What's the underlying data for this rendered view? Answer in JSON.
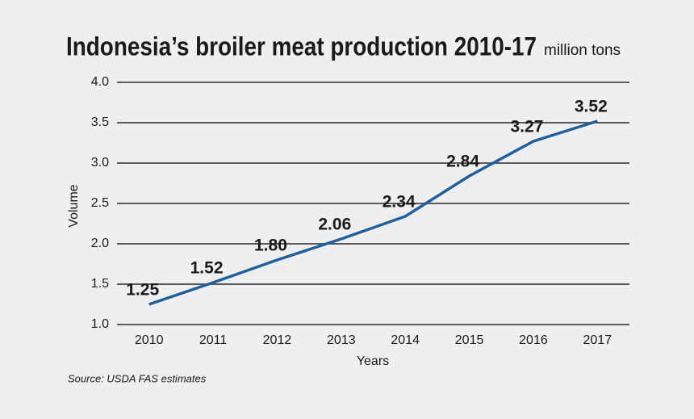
{
  "chart_data": {
    "type": "line",
    "title": "Indonesia’s broiler meat production 2010-17",
    "unit": "million tons",
    "x_label": "Years",
    "y_label": "Volume",
    "source": "Source: USDA FAS estimates",
    "categories": [
      "2010",
      "2011",
      "2012",
      "2013",
      "2014",
      "2015",
      "2016",
      "2017"
    ],
    "values": [
      1.25,
      1.52,
      1.8,
      2.06,
      2.34,
      2.84,
      3.27,
      3.52
    ],
    "value_labels": [
      "1.25",
      "1.52",
      "1.80",
      "2.06",
      "2.34",
      "2.84",
      "3.27",
      "3.52"
    ],
    "color": "#1f5f9e",
    "ylim": [
      1,
      4
    ],
    "yticks": [
      {
        "value": 1,
        "label": "1.0"
      },
      1.5,
      {
        "value": 2,
        "label": "2.0"
      },
      2.5,
      {
        "value": 3,
        "label": "3.0"
      },
      3.5,
      {
        "value": 4,
        "label": "4.0"
      }
    ],
    "grid": true
  }
}
